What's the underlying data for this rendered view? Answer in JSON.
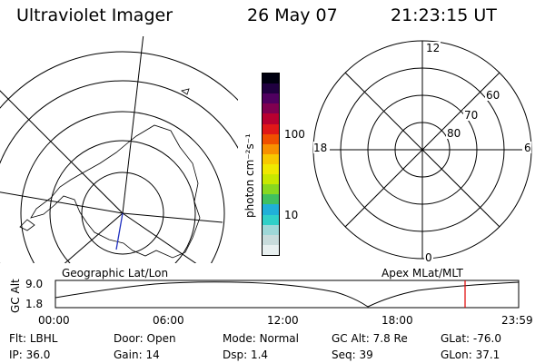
{
  "header": {
    "instrument": "Ultraviolet Imager",
    "date": "26 May 07",
    "time": "21:23:15 UT"
  },
  "colorbar": {
    "unit_label": "photon cm⁻²s⁻¹",
    "ticks": [
      "100",
      "10"
    ],
    "colors": [
      "#e8f0f0",
      "#c8dcdc",
      "#9ed8d8",
      "#30d0c8",
      "#20b0d8",
      "#40c060",
      "#88d820",
      "#c8e800",
      "#f0e800",
      "#f8c800",
      "#f89000",
      "#f05000",
      "#e01818",
      "#b80030",
      "#800050",
      "#500060",
      "#200040",
      "#000010"
    ]
  },
  "left_panel": {
    "caption": "Geographic Lat/Lon"
  },
  "right_panel": {
    "caption": "Apex MLat/MLT",
    "mlt_labels": {
      "top": "12",
      "left": "18",
      "right": "6",
      "bottom": "0"
    },
    "lat_labels": [
      "60",
      "70",
      "80"
    ]
  },
  "altitude_plot": {
    "ylabel": "GC Alt",
    "yticks": [
      "9.0",
      "1.8"
    ],
    "xticks": [
      "00:00",
      "06:00",
      "12:00",
      "18:00",
      "23:59"
    ],
    "current_time_color": "#e00000"
  },
  "info": {
    "row1": [
      {
        "key": "Flt:",
        "value": "LBHL"
      },
      {
        "key": "Door:",
        "value": "Open"
      },
      {
        "key": "Mode:",
        "value": "Normal"
      },
      {
        "key": "GC Alt:",
        "value": "7.8 Re"
      },
      {
        "key": "GLat:",
        "value": "-76.0"
      }
    ],
    "row2": [
      {
        "key": "IP:",
        "value": "36.0"
      },
      {
        "key": "Gain:",
        "value": "14"
      },
      {
        "key": "Dsp:",
        "value": "1.4"
      },
      {
        "key": "Seq:",
        "value": "39"
      },
      {
        "key": "GLon:",
        "value": "37.1"
      }
    ]
  }
}
